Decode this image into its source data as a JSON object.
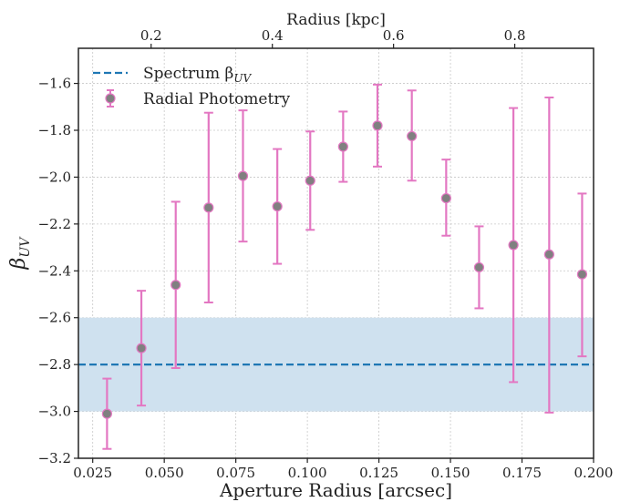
{
  "chart_data": {
    "type": "scatter",
    "xlabel": "Aperture Radius [arcsec]",
    "ylabel_main": "β",
    "ylabel_sub": "UV",
    "top_xlabel": "Radius [kpc]",
    "xlim": [
      0.02,
      0.2
    ],
    "ylim": [
      -3.2,
      -1.45
    ],
    "top_xlim": [
      0.08,
      0.93
    ],
    "x_ticks": [
      "0.025",
      "0.050",
      "0.075",
      "0.100",
      "0.125",
      "0.150",
      "0.175",
      "0.200"
    ],
    "x_tick_values": [
      0.025,
      0.05,
      0.075,
      0.1,
      0.125,
      0.15,
      0.175,
      0.2
    ],
    "y_ticks": [
      "−1.6",
      "−1.8",
      "−2.0",
      "−2.2",
      "−2.4",
      "−2.6",
      "−2.8",
      "−3.0",
      "−3.2"
    ],
    "y_tick_values": [
      -1.6,
      -1.8,
      -2.0,
      -2.2,
      -2.4,
      -2.6,
      -2.8,
      -3.0,
      -3.2
    ],
    "top_ticks": [
      "0.2",
      "0.4",
      "0.6",
      "0.8"
    ],
    "top_tick_values": [
      0.2,
      0.4,
      0.6,
      0.8
    ],
    "grid": true,
    "legend_position": "top-left",
    "series": [
      {
        "name": "Radial Photometry",
        "kind": "errorbar",
        "marker_color": "#808080",
        "marker_edge": "#e377c2",
        "error_color": "#e377c2",
        "points": [
          {
            "x": 0.03,
            "y": -3.01,
            "lo": -3.16,
            "hi": -2.86
          },
          {
            "x": 0.042,
            "y": -2.73,
            "lo": -2.975,
            "hi": -2.485
          },
          {
            "x": 0.054,
            "y": -2.46,
            "lo": -2.815,
            "hi": -2.105
          },
          {
            "x": 0.0655,
            "y": -2.13,
            "lo": -2.535,
            "hi": -1.725
          },
          {
            "x": 0.0775,
            "y": -1.995,
            "lo": -2.275,
            "hi": -1.715
          },
          {
            "x": 0.0895,
            "y": -2.125,
            "lo": -2.37,
            "hi": -1.88
          },
          {
            "x": 0.101,
            "y": -2.015,
            "lo": -2.225,
            "hi": -1.805
          },
          {
            "x": 0.1125,
            "y": -1.87,
            "lo": -2.02,
            "hi": -1.72
          },
          {
            "x": 0.1245,
            "y": -1.78,
            "lo": -1.955,
            "hi": -1.605
          },
          {
            "x": 0.1365,
            "y": -1.825,
            "lo": -2.015,
            "hi": -1.63
          },
          {
            "x": 0.1485,
            "y": -2.09,
            "lo": -2.25,
            "hi": -1.925
          },
          {
            "x": 0.16,
            "y": -2.385,
            "lo": -2.56,
            "hi": -2.21
          },
          {
            "x": 0.172,
            "y": -2.29,
            "lo": -2.875,
            "hi": -1.705
          },
          {
            "x": 0.1845,
            "y": -2.33,
            "lo": -3.005,
            "hi": -1.66
          },
          {
            "x": 0.196,
            "y": -2.415,
            "lo": -2.765,
            "hi": -2.07
          }
        ]
      },
      {
        "name": "Spectrum β",
        "name_sub": "UV",
        "kind": "hline",
        "y": -2.8,
        "band": [
          -3.0,
          -2.6
        ],
        "line_color": "#1f77b4",
        "band_color": "#cfe1ef"
      }
    ]
  }
}
